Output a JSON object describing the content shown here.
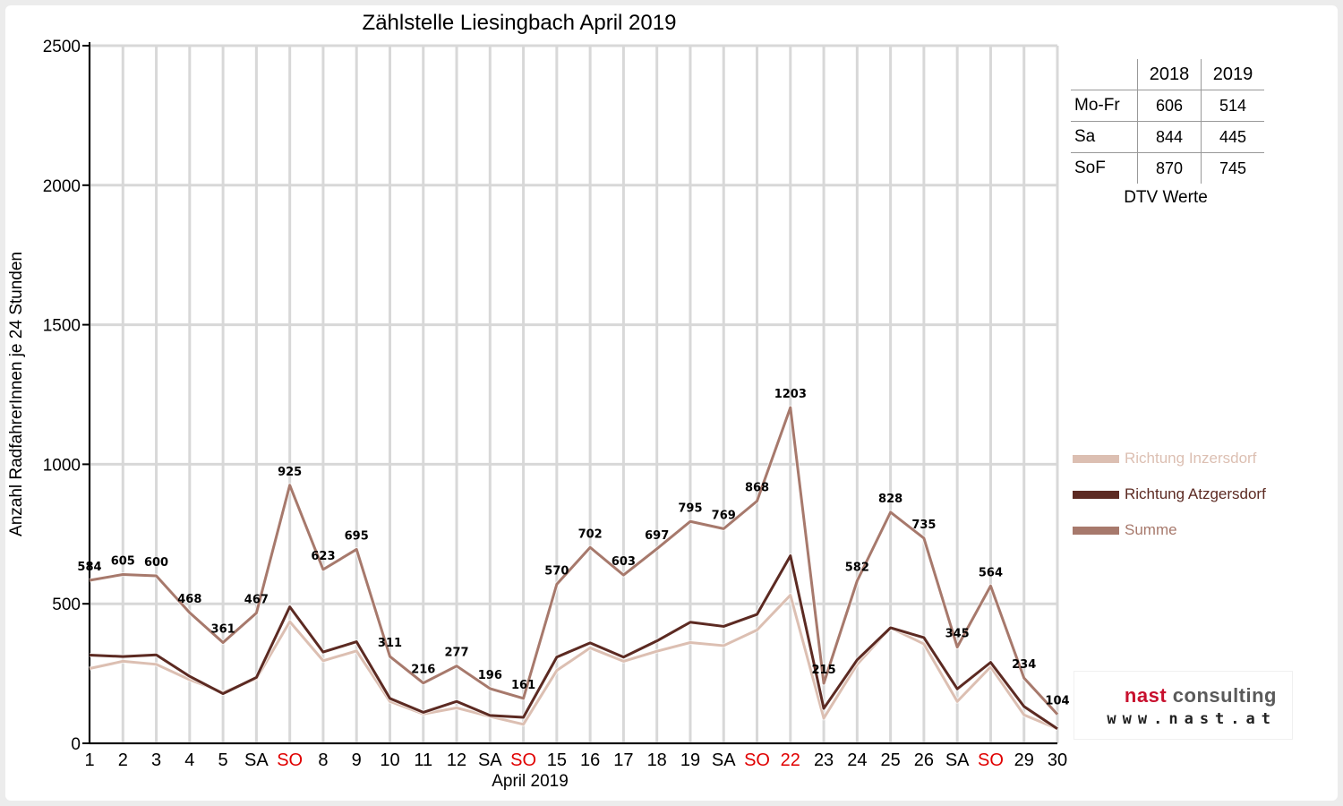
{
  "chart_data": {
    "type": "line",
    "title": "Zählstelle Liesingbach April 2019",
    "xlabel": "April 2019",
    "ylabel": "Anzahl RadfahrerInnen je 24 Stunden",
    "ylim": [
      0,
      2500
    ],
    "yticks": [
      0,
      500,
      1000,
      1500,
      2000,
      2500
    ],
    "grid": true,
    "legend_position": "right",
    "x": [
      1,
      2,
      3,
      4,
      5,
      6,
      7,
      8,
      9,
      10,
      11,
      12,
      13,
      14,
      15,
      16,
      17,
      18,
      19,
      20,
      21,
      22,
      23,
      24,
      25,
      26,
      27,
      28,
      29,
      30
    ],
    "categories": [
      "1",
      "2",
      "3",
      "4",
      "5",
      "SA",
      "SO",
      "8",
      "9",
      "10",
      "11",
      "12",
      "SA",
      "SO",
      "15",
      "16",
      "17",
      "18",
      "19",
      "SA",
      "SO",
      "22",
      "23",
      "24",
      "25",
      "26",
      "SA",
      "SO",
      "29",
      "30"
    ],
    "highlight_categories": [
      "SO",
      "22"
    ],
    "highlight_color": "#e00000",
    "series": [
      {
        "name": "Richtung Inzersdorf",
        "color": "#dcbfb2",
        "values": [
          268,
          294,
          283,
          228,
          183,
          231,
          436,
          296,
          331,
          150,
          105,
          127,
          96,
          68,
          261,
          342,
          294,
          330,
          361,
          350,
          406,
          531,
          90,
          283,
          414,
          356,
          150,
          274,
          102,
          52
        ]
      },
      {
        "name": "Richtung Atzgersdorf",
        "color": "#5c2a22",
        "values": [
          316,
          311,
          317,
          240,
          178,
          236,
          489,
          327,
          364,
          161,
          111,
          150,
          100,
          93,
          309,
          360,
          309,
          367,
          434,
          419,
          462,
          672,
          125,
          299,
          414,
          379,
          195,
          290,
          132,
          52
        ]
      },
      {
        "name": "Summe",
        "color": "#a7796c",
        "values": [
          584,
          605,
          600,
          468,
          361,
          467,
          925,
          623,
          695,
          311,
          216,
          277,
          196,
          161,
          570,
          702,
          603,
          697,
          795,
          769,
          868,
          1203,
          215,
          582,
          828,
          735,
          345,
          564,
          234,
          104
        ]
      }
    ]
  },
  "dtv_table": {
    "columns": [
      "2018",
      "2019"
    ],
    "rows": [
      {
        "label": "Mo-Fr",
        "v2018": "606",
        "v2019": "514"
      },
      {
        "label": "Sa",
        "v2018": "844",
        "v2019": "445"
      },
      {
        "label": "SoF",
        "v2018": "870",
        "v2019": "745"
      }
    ],
    "caption": "DTV Werte"
  },
  "logo": {
    "name_part1": "nast",
    "name_part2": "consulting",
    "url": "www.nast.at",
    "color_part1": "#c8102e",
    "color_part2": "#5a5a5a"
  }
}
